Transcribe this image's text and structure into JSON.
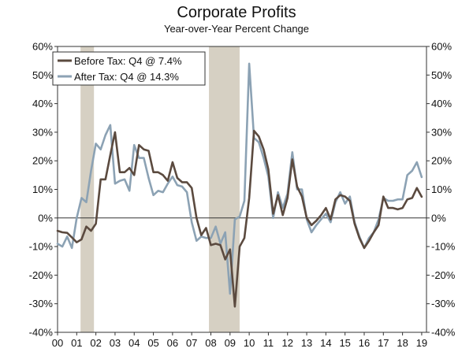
{
  "chart_data": {
    "type": "line",
    "title": "Corporate Profits",
    "subtitle": "Year-over-Year Percent Change",
    "xlabel": "",
    "ylabel": "",
    "ylim": [
      -40,
      60
    ],
    "xlim": [
      2000.0,
      2019.25
    ],
    "y_ticks": [
      60,
      50,
      40,
      30,
      20,
      10,
      0,
      -10,
      -20,
      -30,
      -40
    ],
    "y_tick_labels": [
      "60%",
      "50%",
      "40%",
      "30%",
      "20%",
      "10%",
      "0%",
      "-10%",
      "-20%",
      "-30%",
      "-40%"
    ],
    "x_tick_labels": [
      "00",
      "01",
      "02",
      "03",
      "04",
      "05",
      "06",
      "07",
      "08",
      "09",
      "10",
      "11",
      "12",
      "13",
      "14",
      "15",
      "16",
      "17",
      "18",
      "19"
    ],
    "recessions": [
      [
        2001.2,
        2001.9
      ],
      [
        2007.9,
        2009.5
      ]
    ],
    "legend_position": "top-left",
    "colors": {
      "before_tax": "#5b4a3f",
      "after_tax": "#8ca2b4",
      "recession": "#d6d0c3"
    },
    "series": [
      {
        "name": "Before Tax: Q4 @ 7.4%",
        "key": "before_tax",
        "start": 2000.0,
        "step": 0.25,
        "values": [
          -4.5,
          -5.0,
          -5.2,
          -6.8,
          -8.5,
          -7.5,
          -3.0,
          -4.5,
          -2.0,
          13.5,
          13.5,
          22.0,
          30.0,
          16.0,
          16.0,
          17.5,
          15.0,
          25.5,
          24.0,
          23.5,
          16.0,
          16.0,
          15.0,
          13.0,
          19.5,
          14.0,
          12.5,
          12.5,
          10.5,
          0.0,
          -6.0,
          -3.5,
          -9.5,
          -9.0,
          -9.5,
          -14.5,
          -11.0,
          -31.0,
          -10.0,
          -7.0,
          7.0,
          30.5,
          28.5,
          24.0,
          17.0,
          1.5,
          8.0,
          1.0,
          7.0,
          20.5,
          11.0,
          7.5,
          0.0,
          -2.5,
          -1.0,
          1.0,
          3.5,
          -0.5,
          6.5,
          8.0,
          7.5,
          6.0,
          -2.0,
          -7.0,
          -10.5,
          -8.0,
          -5.0,
          -2.5,
          7.5,
          3.5,
          3.5,
          3.0,
          3.5,
          6.5,
          7.0,
          10.5,
          7.4
        ]
      },
      {
        "name": "After Tax: Q4 @ 14.3%",
        "key": "after_tax",
        "start": 2000.0,
        "step": 0.25,
        "values": [
          -9.0,
          -10.0,
          -6.5,
          -10.5,
          0.0,
          7.0,
          5.5,
          16.5,
          26.0,
          24.0,
          29.0,
          32.5,
          12.0,
          13.0,
          13.5,
          9.5,
          25.5,
          21.0,
          21.0,
          14.0,
          8.0,
          9.5,
          9.0,
          12.0,
          14.5,
          11.5,
          11.0,
          9.0,
          -1.5,
          -8.0,
          -6.5,
          -7.0,
          -7.0,
          -3.0,
          -9.0,
          -5.0,
          -26.5,
          -0.5,
          0.5,
          6.0,
          54.0,
          28.0,
          26.5,
          21.0,
          14.5,
          0.0,
          9.0,
          3.5,
          8.5,
          23.0,
          10.0,
          10.0,
          -0.5,
          -5.0,
          -2.5,
          -0.5,
          1.5,
          -1.5,
          5.5,
          9.0,
          5.0,
          7.5,
          -1.5,
          -6.5,
          -10.5,
          -7.0,
          -5.0,
          -0.5,
          7.0,
          6.0,
          6.0,
          6.5,
          6.5,
          15.0,
          16.5,
          19.5,
          14.3
        ]
      }
    ]
  }
}
